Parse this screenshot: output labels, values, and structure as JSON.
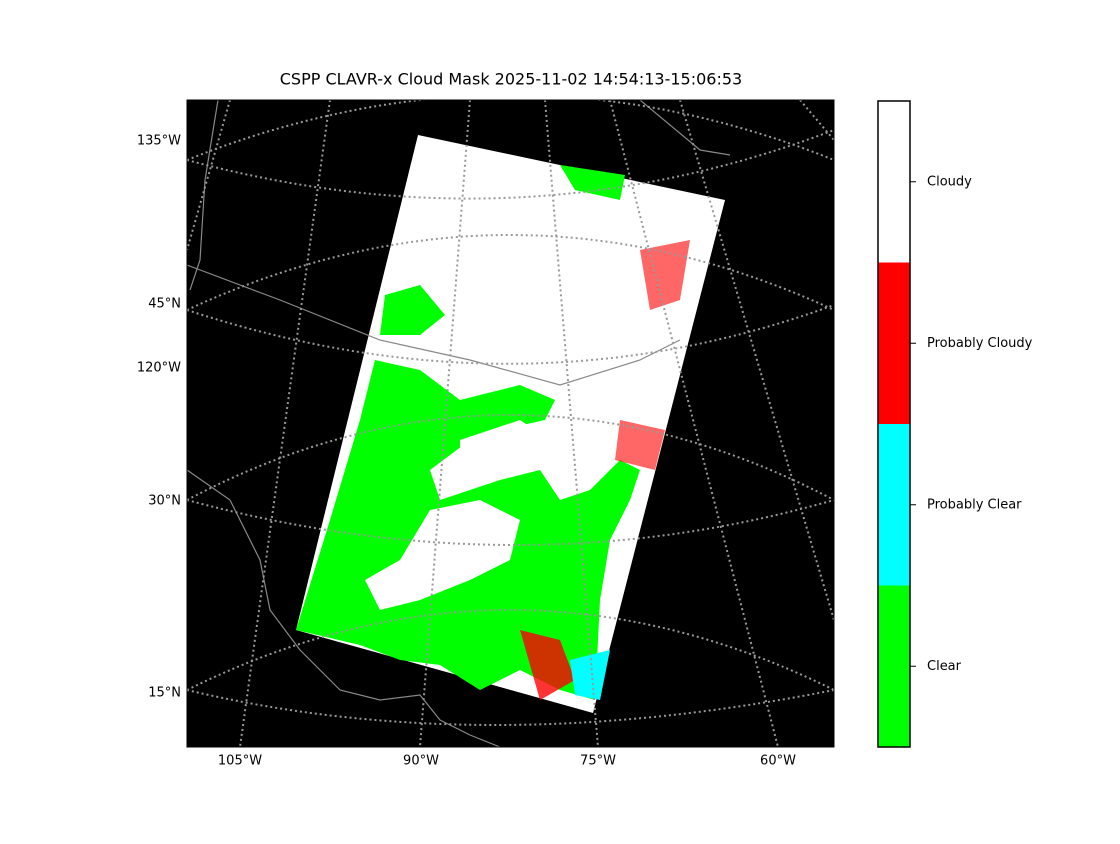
{
  "title": "CSPP CLAVR-x Cloud Mask 2025-11-02 14:54:13-15:06:53",
  "map": {
    "left_labels": [
      "135°W",
      "45°N",
      "120°W",
      "30°N",
      "15°N"
    ],
    "bottom_labels": [
      "105°W",
      "90°W",
      "75°W",
      "60°W"
    ]
  },
  "legend": {
    "items": [
      {
        "label": "Cloudy",
        "color": "#ffffff"
      },
      {
        "label": "Probably Cloudy",
        "color": "#ff0000"
      },
      {
        "label": "Probably Clear",
        "color": "#00ffff"
      },
      {
        "label": "Clear",
        "color": "#00ff00"
      }
    ]
  }
}
